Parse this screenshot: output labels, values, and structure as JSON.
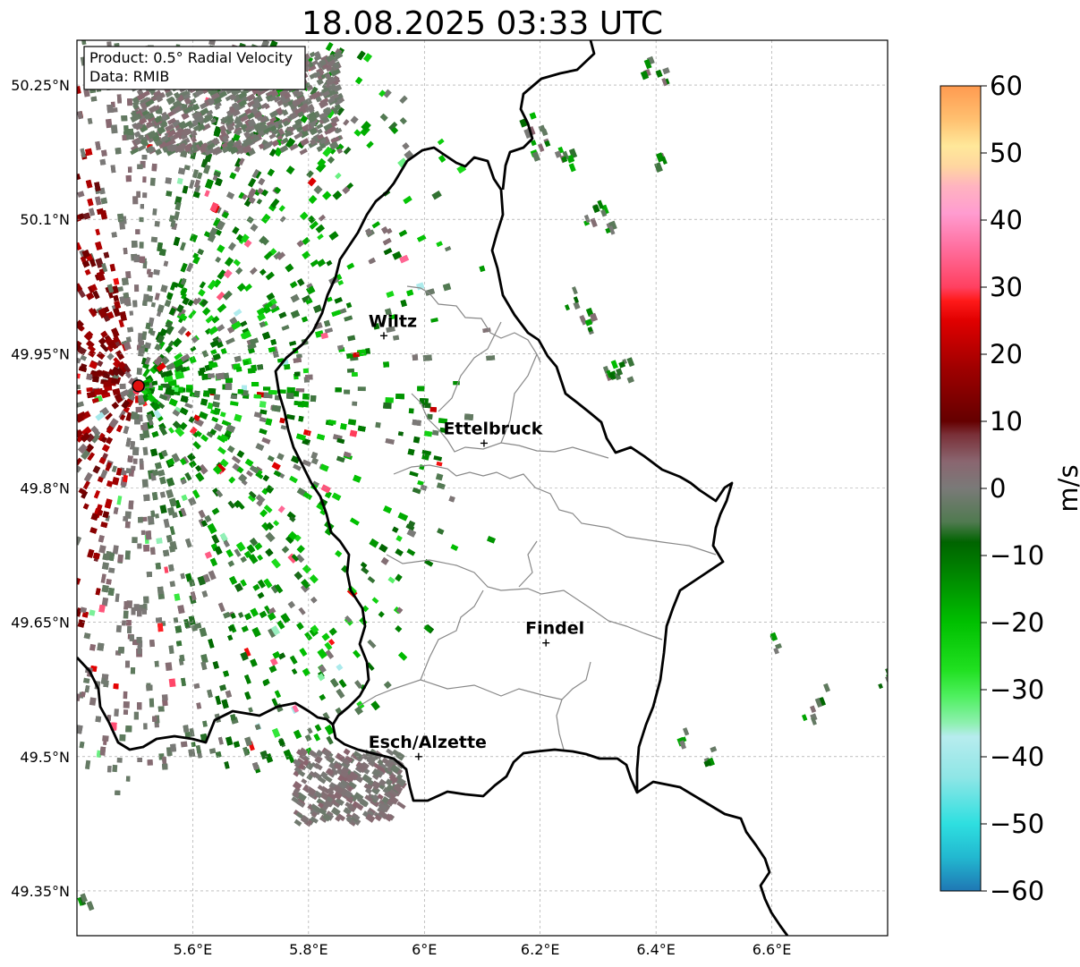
{
  "title": "18.08.2025 03:33 UTC",
  "infobox": {
    "product": "Product: 0.5° Radial Velocity",
    "data": "Data: RMIB"
  },
  "map": {
    "lon_range": [
      5.4,
      6.8
    ],
    "lat_range": [
      49.3,
      50.3
    ],
    "x_ticks": [
      {
        "value": 5.6,
        "label": "5.6°E"
      },
      {
        "value": 5.8,
        "label": "5.8°E"
      },
      {
        "value": 6.0,
        "label": "6°E"
      },
      {
        "value": 6.2,
        "label": "6.2°E"
      },
      {
        "value": 6.4,
        "label": "6.4°E"
      },
      {
        "value": 6.6,
        "label": "6.6°E"
      }
    ],
    "y_ticks": [
      {
        "value": 50.25,
        "label": "50.25°N"
      },
      {
        "value": 50.1,
        "label": "50.1°N"
      },
      {
        "value": 49.95,
        "label": "49.95°N"
      },
      {
        "value": 49.8,
        "label": "49.8°N"
      },
      {
        "value": 49.65,
        "label": "49.65°N"
      },
      {
        "value": 49.5,
        "label": "49.5°N"
      },
      {
        "value": 49.35,
        "label": "49.35°N"
      }
    ],
    "grid": true,
    "radar_site": {
      "lon": 5.506,
      "lat": 49.914
    },
    "cities": [
      {
        "name": "Wiltz",
        "lon": 5.93,
        "lat": 49.97
      },
      {
        "name": "Ettelbruck",
        "lon": 6.103,
        "lat": 49.85
      },
      {
        "name": "Findel",
        "lon": 6.21,
        "lat": 49.627
      },
      {
        "name": "Esch/Alzette",
        "lon": 5.99,
        "lat": 49.5
      }
    ]
  },
  "colorbar": {
    "label": "m/s",
    "range": [
      -60,
      60
    ],
    "ticks": [
      {
        "value": 60,
        "label": "60"
      },
      {
        "value": 50,
        "label": "50"
      },
      {
        "value": 40,
        "label": "40"
      },
      {
        "value": 30,
        "label": "30"
      },
      {
        "value": 20,
        "label": "20"
      },
      {
        "value": 10,
        "label": "10"
      },
      {
        "value": 0,
        "label": "0"
      },
      {
        "value": -10,
        "label": "−10"
      },
      {
        "value": -20,
        "label": "−20"
      },
      {
        "value": -30,
        "label": "−30"
      },
      {
        "value": -40,
        "label": "−40"
      },
      {
        "value": -50,
        "label": "−50"
      },
      {
        "value": -60,
        "label": "−60"
      }
    ],
    "stops": [
      {
        "v": -60,
        "color": "#1f77b4"
      },
      {
        "v": -55,
        "color": "#22b8d0"
      },
      {
        "v": -50,
        "color": "#2edfe0"
      },
      {
        "v": -43,
        "color": "#8fe6e6"
      },
      {
        "v": -37,
        "color": "#b7ecee"
      },
      {
        "v": -35,
        "color": "#8ef0b0"
      },
      {
        "v": -31,
        "color": "#4ff060"
      },
      {
        "v": -27,
        "color": "#20e020"
      },
      {
        "v": -20,
        "color": "#00c000"
      },
      {
        "v": -12,
        "color": "#008000"
      },
      {
        "v": -8,
        "color": "#006400"
      },
      {
        "v": -5,
        "color": "#507a50"
      },
      {
        "v": 0,
        "color": "#7a7a78"
      },
      {
        "v": 4,
        "color": "#8a6670"
      },
      {
        "v": 8,
        "color": "#7a3038"
      },
      {
        "v": 10,
        "color": "#650000"
      },
      {
        "v": 18,
        "color": "#a00000"
      },
      {
        "v": 25,
        "color": "#e00000"
      },
      {
        "v": 28,
        "color": "#ff1a1a"
      },
      {
        "v": 30,
        "color": "#ff4060"
      },
      {
        "v": 36,
        "color": "#ff70a0"
      },
      {
        "v": 41,
        "color": "#ff9cd0"
      },
      {
        "v": 45,
        "color": "#ffb3c0"
      },
      {
        "v": 48,
        "color": "#ffd6a0"
      },
      {
        "v": 51,
        "color": "#ffe89a"
      },
      {
        "v": 55,
        "color": "#ffc070"
      },
      {
        "v": 60,
        "color": "#ff9a50"
      }
    ]
  }
}
